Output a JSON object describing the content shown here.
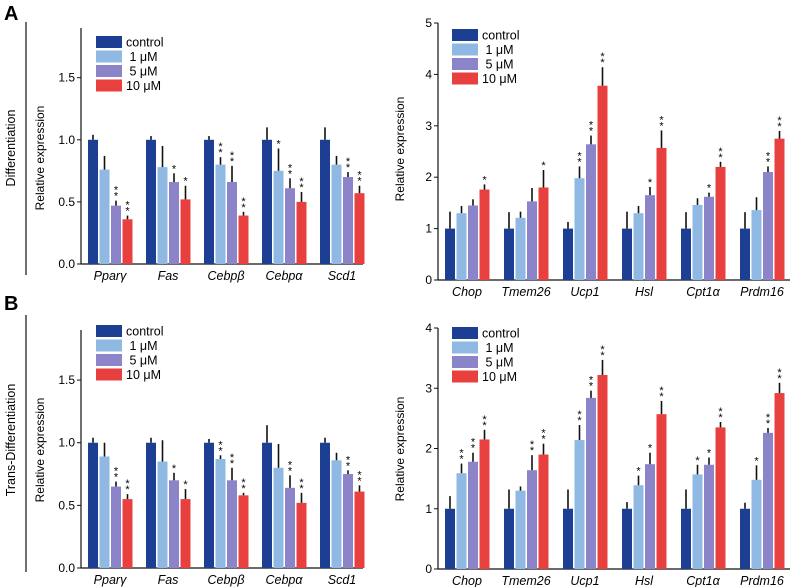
{
  "panels": [
    {
      "letter": "A",
      "row_label": "Differentiation"
    },
    {
      "letter": "B",
      "row_label": "Trans-Differentiation"
    }
  ],
  "series_style": [
    {
      "name": "control",
      "color": "#1c3f94"
    },
    {
      "name": "1 μM",
      "color": "#8fb9e3"
    },
    {
      "name": "5 μM",
      "color": "#8b84c8"
    },
    {
      "name": "10 μM",
      "color": "#e8403f"
    }
  ],
  "chart_data": [
    {
      "type": "bar",
      "panel": "A",
      "position": "left",
      "title": "",
      "xlabel": "",
      "ylabel": "Relative expression",
      "ylim": [
        0,
        1.9
      ],
      "yticks": [
        0.0,
        0.5,
        1.0,
        1.5
      ],
      "ytick_labels": [
        "0.0",
        "0.5",
        "1.0",
        "1.5"
      ],
      "legend": [
        "control",
        " 1 μM",
        " 5 μM",
        "10 μM"
      ],
      "legend_position": "top-left",
      "categories": [
        "Pparγ",
        "Fas",
        "Cebpβ",
        "Cebpα",
        "Scd1"
      ],
      "series": [
        {
          "name": "control",
          "values": [
            1.0,
            1.0,
            1.0,
            1.0,
            1.0
          ],
          "errors": [
            0.04,
            0.03,
            0.03,
            0.1,
            0.1
          ]
        },
        {
          "name": "1 μM",
          "values": [
            0.76,
            0.78,
            0.8,
            0.75,
            0.8
          ],
          "errors": [
            0.11,
            0.17,
            0.06,
            0.18,
            0.07
          ]
        },
        {
          "name": "5 μM",
          "values": [
            0.47,
            0.66,
            0.66,
            0.61,
            0.7
          ],
          "errors": [
            0.04,
            0.07,
            0.13,
            0.08,
            0.04
          ]
        },
        {
          "name": "10 μM",
          "values": [
            0.36,
            0.52,
            0.39,
            0.5,
            0.57
          ],
          "errors": [
            0.03,
            0.11,
            0.03,
            0.08,
            0.06
          ]
        }
      ],
      "significance": [
        [
          "",
          "",
          "**",
          "**"
        ],
        [
          "",
          "",
          "*",
          "*"
        ],
        [
          "",
          "**",
          "**",
          "**"
        ],
        [
          "",
          "*",
          "**",
          "**"
        ],
        [
          "",
          "",
          "**",
          "**"
        ]
      ]
    },
    {
      "type": "bar",
      "panel": "A",
      "position": "right",
      "title": "",
      "xlabel": "",
      "ylabel": "Relative expression",
      "ylim": [
        0,
        5
      ],
      "yticks": [
        0,
        1,
        2,
        3,
        4,
        5
      ],
      "ytick_labels": [
        "0",
        "1",
        "2",
        "3",
        "4",
        "5"
      ],
      "legend": [
        "control",
        " 1 μM",
        " 5 μM",
        "10 μM"
      ],
      "legend_position": "top-left",
      "categories": [
        "Chop",
        "Tmem26",
        "Ucp1",
        "Hsl",
        "Cpt1α",
        "Prdm16"
      ],
      "series": [
        {
          "name": "control",
          "values": [
            1.0,
            1.0,
            1.0,
            1.0,
            1.0,
            1.0
          ],
          "errors": [
            0.33,
            0.32,
            0.13,
            0.33,
            0.32,
            0.32
          ]
        },
        {
          "name": "1 μM",
          "values": [
            1.3,
            1.21,
            1.98,
            1.3,
            1.46,
            1.36
          ],
          "errors": [
            0.14,
            0.12,
            0.23,
            0.14,
            0.13,
            0.25
          ]
        },
        {
          "name": "5 μM",
          "values": [
            1.45,
            1.53,
            2.64,
            1.65,
            1.62,
            2.1
          ],
          "errors": [
            0.12,
            0.26,
            0.17,
            0.16,
            0.08,
            0.11
          ]
        },
        {
          "name": "10 μM",
          "values": [
            1.76,
            1.8,
            3.78,
            2.57,
            2.2,
            2.75
          ],
          "errors": [
            0.1,
            0.34,
            0.36,
            0.34,
            0.1,
            0.15
          ]
        }
      ],
      "significance": [
        [
          "",
          "",
          "",
          "*"
        ],
        [
          "",
          "",
          "",
          "*"
        ],
        [
          "",
          "**",
          "**",
          "**"
        ],
        [
          "",
          "",
          "*",
          "**"
        ],
        [
          "",
          "",
          "*",
          "**"
        ],
        [
          "",
          "",
          "**",
          "**"
        ]
      ]
    },
    {
      "type": "bar",
      "panel": "B",
      "position": "left",
      "title": "",
      "xlabel": "",
      "ylabel": "Relative expression",
      "ylim": [
        0,
        1.9
      ],
      "yticks": [
        0.0,
        0.5,
        1.0,
        1.5
      ],
      "ytick_labels": [
        "0.0",
        "0.5",
        "1.0",
        "1.5"
      ],
      "legend": [
        "control",
        " 1 μM",
        " 5 μM",
        "10 μM"
      ],
      "legend_position": "top-left",
      "categories": [
        "Pparγ",
        "Fas",
        "Cebpβ",
        "Cebpα",
        "Scd1"
      ],
      "series": [
        {
          "name": "control",
          "values": [
            1.0,
            1.0,
            1.0,
            1.0,
            1.0
          ],
          "errors": [
            0.04,
            0.04,
            0.03,
            0.14,
            0.04
          ]
        },
        {
          "name": "1 μM",
          "values": [
            0.89,
            0.85,
            0.87,
            0.8,
            0.86
          ],
          "errors": [
            0.11,
            0.17,
            0.03,
            0.19,
            0.06
          ]
        },
        {
          "name": "5 μM",
          "values": [
            0.65,
            0.7,
            0.7,
            0.64,
            0.75
          ],
          "errors": [
            0.04,
            0.06,
            0.1,
            0.1,
            0.03
          ]
        },
        {
          "name": "10 μM",
          "values": [
            0.55,
            0.55,
            0.58,
            0.52,
            0.61
          ],
          "errors": [
            0.04,
            0.08,
            0.02,
            0.08,
            0.05
          ]
        }
      ],
      "significance": [
        [
          "",
          "",
          "**",
          "**"
        ],
        [
          "",
          "",
          "*",
          "*"
        ],
        [
          "",
          "**",
          "**",
          "**"
        ],
        [
          "",
          "",
          "**",
          "**"
        ],
        [
          "",
          "",
          "**",
          "**"
        ]
      ]
    },
    {
      "type": "bar",
      "panel": "B",
      "position": "right",
      "title": "",
      "xlabel": "",
      "ylabel": "Relative expression",
      "ylim": [
        0,
        4
      ],
      "yticks": [
        0,
        1,
        2,
        3,
        4
      ],
      "ytick_labels": [
        "0",
        "1",
        "2",
        "3",
        "4"
      ],
      "legend": [
        "control",
        " 1 μM",
        " 5 μM",
        "10 μM"
      ],
      "legend_position": "top-left",
      "categories": [
        "Chop",
        "Tmem26",
        "Ucp1",
        "Hsl",
        "Cpt1α",
        "Prdm16"
      ],
      "series": [
        {
          "name": "control",
          "values": [
            1.0,
            1.0,
            1.0,
            1.0,
            1.0,
            1.0
          ],
          "errors": [
            0.21,
            0.32,
            0.32,
            0.11,
            0.32,
            0.1
          ]
        },
        {
          "name": "1 μM",
          "values": [
            1.59,
            1.3,
            2.14,
            1.39,
            1.57,
            1.48
          ],
          "errors": [
            0.16,
            0.07,
            0.25,
            0.16,
            0.16,
            0.24
          ]
        },
        {
          "name": "5 μM",
          "values": [
            1.78,
            1.64,
            2.84,
            1.74,
            1.73,
            2.26
          ],
          "errors": [
            0.15,
            0.25,
            0.12,
            0.19,
            0.12,
            0.08
          ]
        },
        {
          "name": "10 μM",
          "values": [
            2.15,
            1.9,
            3.22,
            2.57,
            2.35,
            2.92
          ],
          "errors": [
            0.16,
            0.18,
            0.25,
            0.22,
            0.09,
            0.17
          ]
        }
      ],
      "significance": [
        [
          "",
          "**",
          "**",
          "**"
        ],
        [
          "",
          "",
          "**",
          "**"
        ],
        [
          "",
          "**",
          "**",
          "**"
        ],
        [
          "",
          "*",
          "*",
          "**"
        ],
        [
          "",
          "*",
          "*",
          "**"
        ],
        [
          "",
          "*",
          "**",
          "**"
        ]
      ]
    }
  ]
}
